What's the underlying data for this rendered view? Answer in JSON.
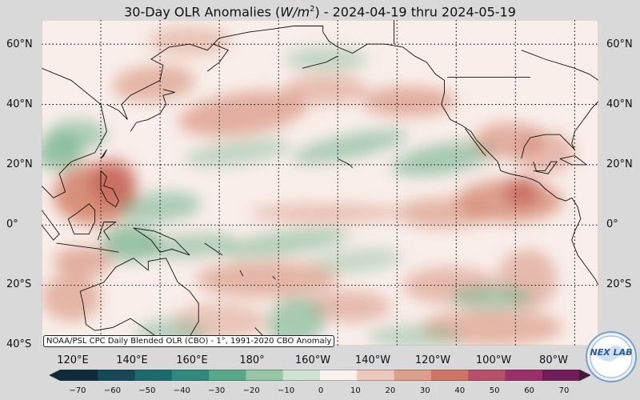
{
  "title": {
    "prefix": "30-Day OLR Anomalies (",
    "unit_base": "W/m",
    "unit_exp": "2",
    "suffix": ") - 2024-04-19 thru 2024-05-19"
  },
  "lat_labels": [
    "60°N",
    "40°N",
    "20°N",
    "0°",
    "20°S",
    "40°S"
  ],
  "lon_labels": [
    "120°E",
    "140°E",
    "160°E",
    "180°",
    "160°W",
    "140°W",
    "120°W",
    "100°W",
    "80°W"
  ],
  "credit": "NOAA/PSL CPC Daily Blended OLR (CBO) - 1°, 1991-2020 CBO Anomaly",
  "colorbar": {
    "ticks": [
      "−70",
      "−60",
      "−50",
      "−40",
      "−30",
      "−20",
      "−10",
      "0",
      "10",
      "20",
      "30",
      "40",
      "50",
      "60",
      "70"
    ],
    "colors": [
      "#0f2a3a",
      "#15495a",
      "#1b6a6e",
      "#2f8a7e",
      "#5aa88c",
      "#95c6a6",
      "#cfe3d4",
      "#f8f1ee",
      "#ecc8bd",
      "#dd9e8b",
      "#cf7566",
      "#b8506c",
      "#9a2f6a",
      "#721c5a",
      "#4a1440"
    ]
  },
  "logo": {
    "text": "NEX LAB",
    "icon": "globe-logo-icon"
  },
  "map": {
    "colors": {
      "ocean_neutral": "#f9eeea",
      "land_neutral": "#f8efec",
      "positive": "#d4866f",
      "positive_strong": "#c45f56",
      "negative": "#6fb08a",
      "negative_strong": "#3d8f73"
    }
  }
}
